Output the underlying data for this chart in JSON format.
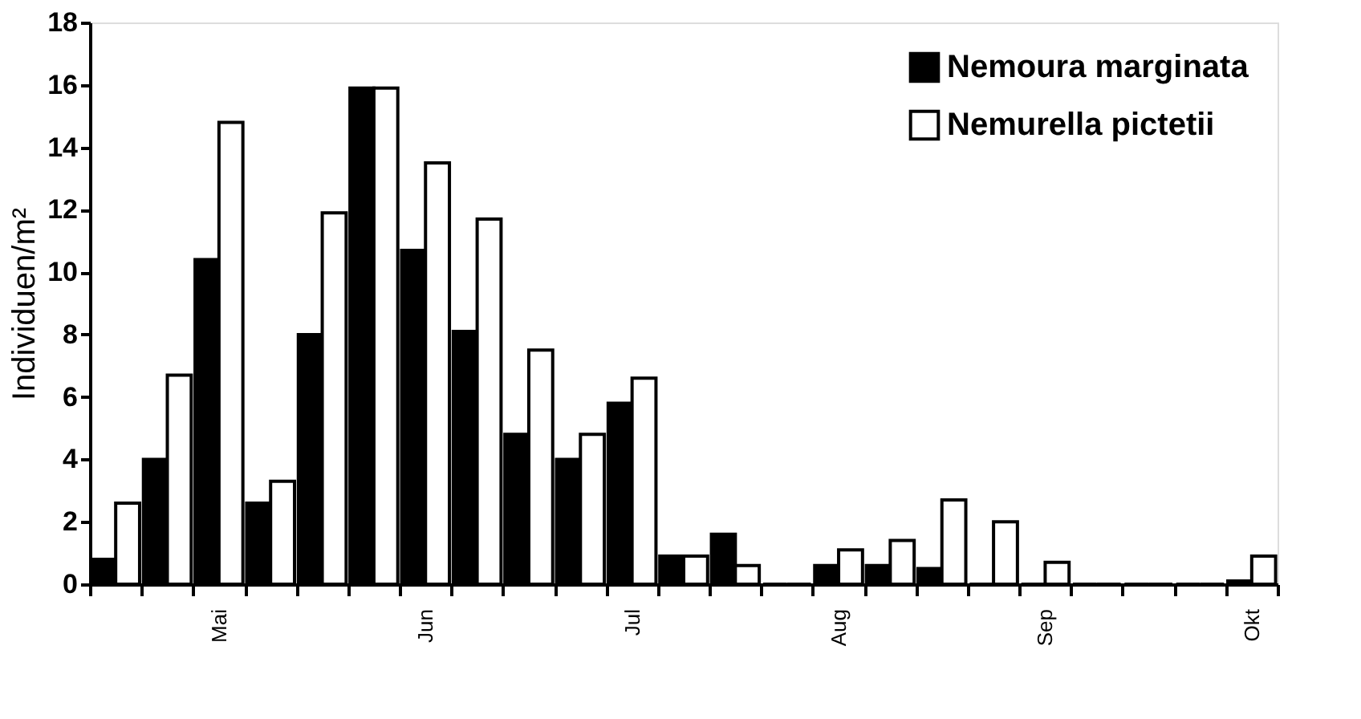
{
  "chart_data": {
    "type": "bar",
    "ylabel": "Individuen/m²",
    "categories": [
      null,
      null,
      "Mai",
      null,
      null,
      null,
      "Jun",
      null,
      null,
      null,
      "Jul",
      null,
      null,
      null,
      "Aug",
      null,
      null,
      null,
      "Sep",
      null,
      null,
      null,
      "Okt"
    ],
    "series": [
      {
        "name": "Nemoura marginata",
        "color": "#000000",
        "values": [
          0.8,
          4.0,
          10.4,
          2.6,
          8.0,
          15.9,
          10.7,
          8.1,
          4.8,
          4.0,
          5.8,
          0.9,
          1.6,
          0,
          0.6,
          0.6,
          0.5,
          0,
          0,
          0,
          0,
          0,
          0.1
        ]
      },
      {
        "name": "Nemurella pictetii",
        "color": "#ffffff",
        "values": [
          2.6,
          6.7,
          14.8,
          3.3,
          11.9,
          15.9,
          13.5,
          11.7,
          7.5,
          4.8,
          6.6,
          0.9,
          0.6,
          0,
          1.1,
          1.4,
          2.7,
          2.0,
          0.7,
          0,
          0,
          0,
          0.9
        ]
      }
    ],
    "ylim": [
      0,
      18
    ],
    "yticks": [
      0,
      2,
      4,
      6,
      8,
      10,
      12,
      14,
      16,
      18
    ],
    "grid": false,
    "legend": "top right"
  }
}
